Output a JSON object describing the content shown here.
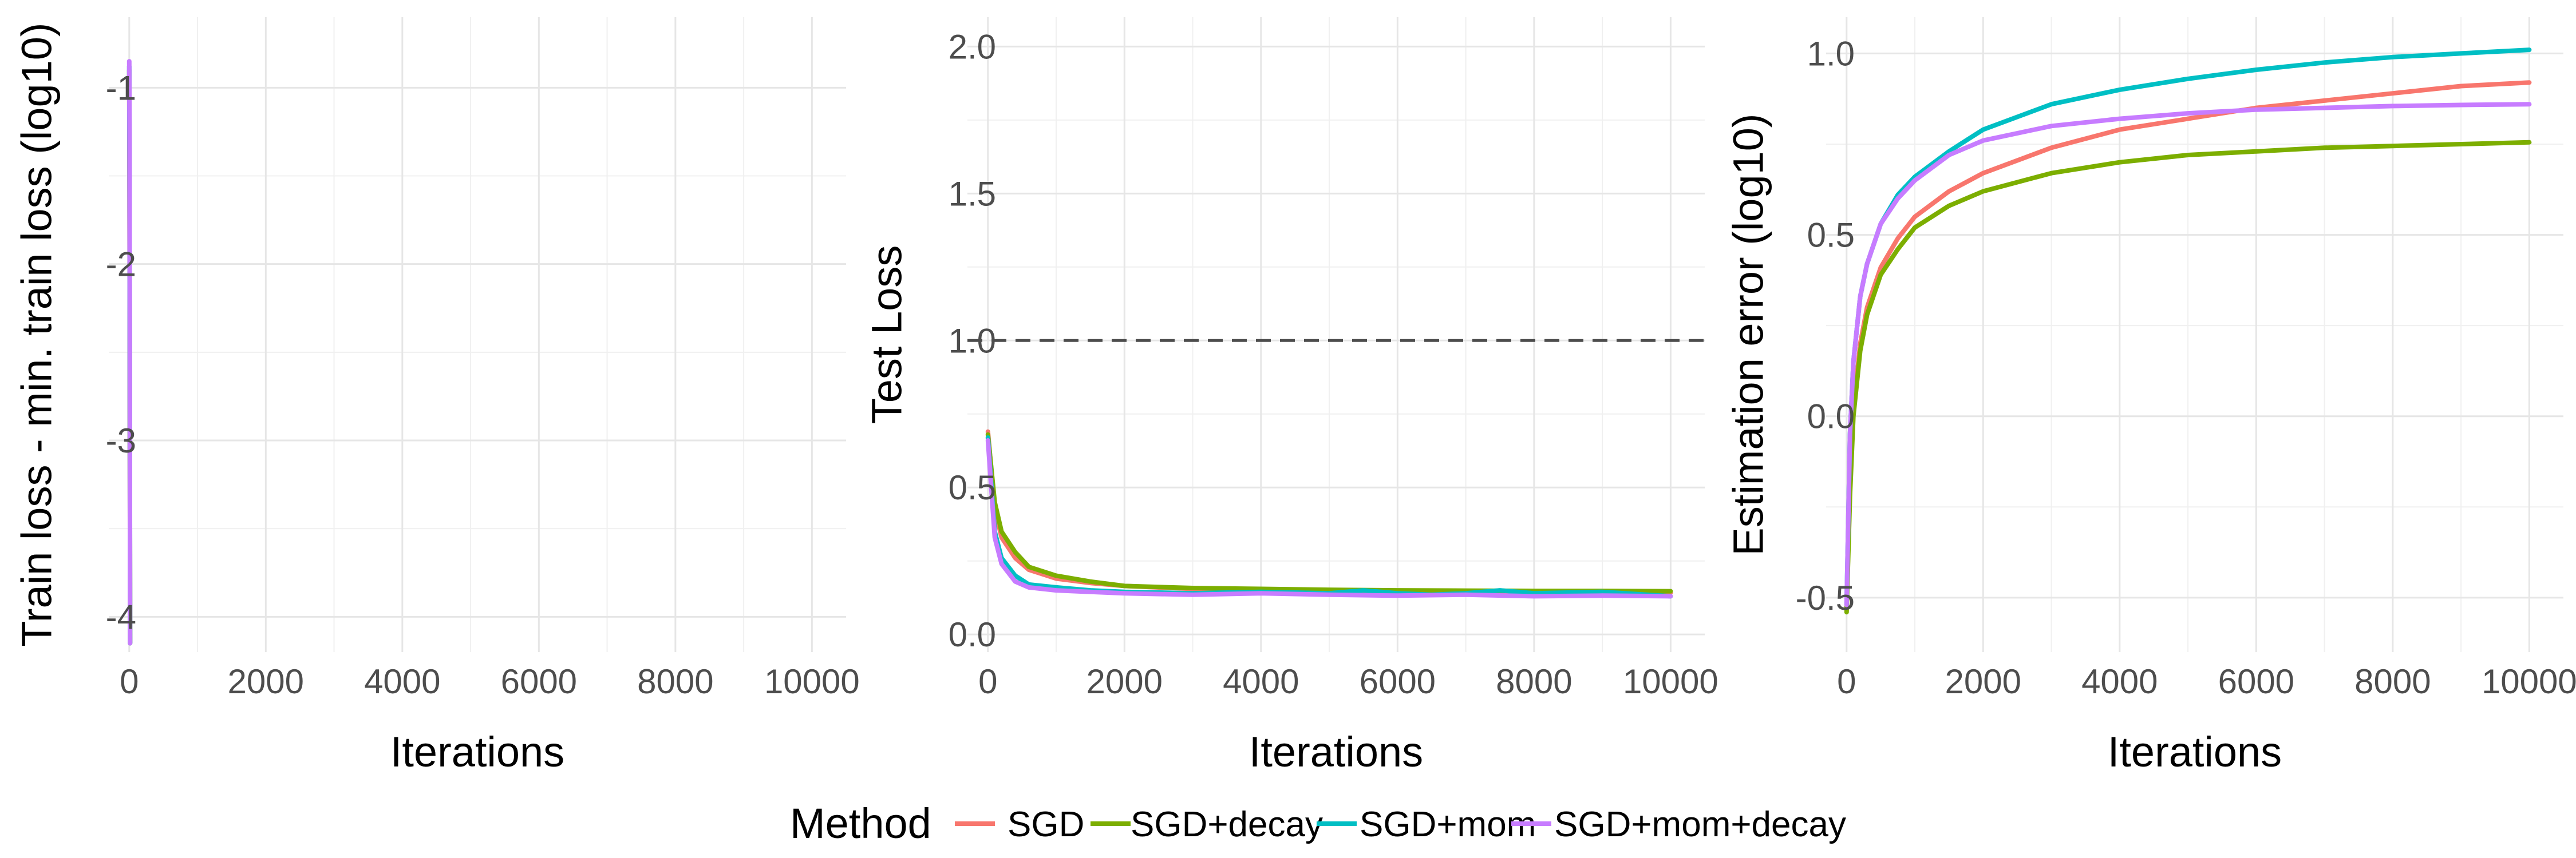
{
  "chart_data": [
    {
      "type": "line",
      "xlabel": "Iterations",
      "ylabel": "Train loss - min. train loss (log10)",
      "xlim": [
        -300,
        10500
      ],
      "ylim": [
        -4.2,
        -0.6
      ],
      "x_ticks": [
        0,
        2000,
        4000,
        6000,
        8000,
        10000
      ],
      "x_tick_labels": [
        "0",
        "2000",
        "4000",
        "6000",
        "8000",
        "10000"
      ],
      "y_ticks": [
        -1,
        -2,
        -3,
        -4
      ],
      "y_tick_labels": [
        "-1",
        "-2",
        "-3",
        "-4"
      ],
      "grid": true,
      "series": [
        {
          "name": "SGD",
          "color": "#F8766D",
          "points": [
            [
              0,
              -0.95
            ],
            [
              4,
              -1.6
            ],
            [
              8,
              -2.6
            ],
            [
              12,
              -4.15
            ]
          ]
        },
        {
          "name": "SGD+decay",
          "color": "#7CAE00",
          "points": [
            [
              0,
              -0.9
            ],
            [
              4,
              -1.5
            ],
            [
              8,
              -2.5
            ],
            [
              12,
              -4.15
            ]
          ]
        },
        {
          "name": "SGD+mom",
          "color": "#00BFC4",
          "points": [
            [
              0,
              -0.88
            ],
            [
              4,
              -1.4
            ],
            [
              8,
              -2.4
            ],
            [
              12,
              -4.15
            ]
          ]
        },
        {
          "name": "SGD+mom+decay",
          "color": "#C77CFF",
          "points": [
            [
              0,
              -0.85
            ],
            [
              4,
              -1.3
            ],
            [
              8,
              -2.3
            ],
            [
              12,
              -4.15
            ]
          ]
        }
      ]
    },
    {
      "type": "line",
      "xlabel": "Iterations",
      "ylabel": "Test Loss",
      "xlim": [
        -300,
        10500
      ],
      "ylim": [
        -0.06,
        2.1
      ],
      "x_ticks": [
        0,
        2000,
        4000,
        6000,
        8000,
        10000
      ],
      "x_tick_labels": [
        "0",
        "2000",
        "4000",
        "6000",
        "8000",
        "10000"
      ],
      "y_ticks": [
        0.0,
        0.5,
        1.0,
        1.5,
        2.0
      ],
      "y_tick_labels": [
        "0.0",
        "0.5",
        "1.0",
        "1.5",
        "2.0"
      ],
      "grid": true,
      "hline": {
        "y": 1.0,
        "style": "dashed",
        "color": "#4d4d4d"
      },
      "series": [
        {
          "name": "SGD",
          "color": "#F8766D",
          "points": [
            [
              0,
              0.69
            ],
            [
              100,
              0.43
            ],
            [
              200,
              0.33
            ],
            [
              400,
              0.26
            ],
            [
              600,
              0.22
            ],
            [
              1000,
              0.19
            ],
            [
              1500,
              0.175
            ],
            [
              2000,
              0.165
            ],
            [
              3000,
              0.155
            ],
            [
              4000,
              0.15
            ],
            [
              5000,
              0.148
            ],
            [
              6000,
              0.146
            ],
            [
              7000,
              0.145
            ],
            [
              8000,
              0.144
            ],
            [
              9000,
              0.143
            ],
            [
              10000,
              0.142
            ]
          ]
        },
        {
          "name": "SGD+decay",
          "color": "#7CAE00",
          "points": [
            [
              0,
              0.68
            ],
            [
              100,
              0.45
            ],
            [
              200,
              0.35
            ],
            [
              400,
              0.28
            ],
            [
              600,
              0.23
            ],
            [
              1000,
              0.2
            ],
            [
              1500,
              0.18
            ],
            [
              2000,
              0.165
            ],
            [
              3000,
              0.158
            ],
            [
              4000,
              0.155
            ],
            [
              5000,
              0.152
            ],
            [
              6000,
              0.15
            ],
            [
              7000,
              0.149
            ],
            [
              8000,
              0.148
            ],
            [
              9000,
              0.148
            ],
            [
              10000,
              0.147
            ]
          ]
        },
        {
          "name": "SGD+mom",
          "color": "#00BFC4",
          "points": [
            [
              0,
              0.67
            ],
            [
              100,
              0.35
            ],
            [
              200,
              0.26
            ],
            [
              400,
              0.2
            ],
            [
              600,
              0.17
            ],
            [
              1000,
              0.16
            ],
            [
              1500,
              0.15
            ],
            [
              2000,
              0.145
            ],
            [
              3000,
              0.14
            ],
            [
              4000,
              0.145
            ],
            [
              5000,
              0.14
            ],
            [
              5500,
              0.15
            ],
            [
              6000,
              0.14
            ],
            [
              6500,
              0.135
            ],
            [
              7000,
              0.14
            ],
            [
              7500,
              0.15
            ],
            [
              8000,
              0.14
            ],
            [
              9000,
              0.145
            ],
            [
              10000,
              0.13
            ]
          ]
        },
        {
          "name": "SGD+mom+decay",
          "color": "#C77CFF",
          "points": [
            [
              0,
              0.66
            ],
            [
              100,
              0.33
            ],
            [
              200,
              0.24
            ],
            [
              400,
              0.18
            ],
            [
              600,
              0.16
            ],
            [
              1000,
              0.15
            ],
            [
              1500,
              0.145
            ],
            [
              2000,
              0.14
            ],
            [
              3000,
              0.135
            ],
            [
              4000,
              0.14
            ],
            [
              5000,
              0.135
            ],
            [
              6000,
              0.132
            ],
            [
              7000,
              0.135
            ],
            [
              8000,
              0.13
            ],
            [
              9000,
              0.132
            ],
            [
              10000,
              0.13
            ]
          ]
        }
      ]
    },
    {
      "type": "line",
      "xlabel": "Iterations",
      "ylabel": "Estimation error (log10)",
      "xlim": [
        -300,
        10500
      ],
      "ylim": [
        -0.65,
        1.1
      ],
      "x_ticks": [
        0,
        2000,
        4000,
        6000,
        8000,
        10000
      ],
      "x_tick_labels": [
        "0",
        "2000",
        "4000",
        "6000",
        "8000",
        "10000"
      ],
      "y_ticks": [
        -0.5,
        0.0,
        0.5,
        1.0
      ],
      "y_tick_labels": [
        "-0.5",
        "0.0",
        "0.5",
        "1.0"
      ],
      "grid": true,
      "series": [
        {
          "name": "SGD",
          "color": "#F8766D",
          "points": [
            [
              0,
              -0.53
            ],
            [
              50,
              -0.2
            ],
            [
              100,
              0.02
            ],
            [
              200,
              0.2
            ],
            [
              300,
              0.3
            ],
            [
              500,
              0.41
            ],
            [
              750,
              0.49
            ],
            [
              1000,
              0.55
            ],
            [
              1500,
              0.62
            ],
            [
              2000,
              0.67
            ],
            [
              3000,
              0.74
            ],
            [
              4000,
              0.79
            ],
            [
              5000,
              0.82
            ],
            [
              6000,
              0.85
            ],
            [
              7000,
              0.87
            ],
            [
              8000,
              0.89
            ],
            [
              9000,
              0.91
            ],
            [
              10000,
              0.92
            ]
          ]
        },
        {
          "name": "SGD+decay",
          "color": "#7CAE00",
          "points": [
            [
              0,
              -0.54
            ],
            [
              50,
              -0.22
            ],
            [
              100,
              0.0
            ],
            [
              200,
              0.18
            ],
            [
              300,
              0.28
            ],
            [
              500,
              0.39
            ],
            [
              750,
              0.46
            ],
            [
              1000,
              0.52
            ],
            [
              1500,
              0.58
            ],
            [
              2000,
              0.62
            ],
            [
              3000,
              0.67
            ],
            [
              4000,
              0.7
            ],
            [
              5000,
              0.72
            ],
            [
              6000,
              0.73
            ],
            [
              7000,
              0.74
            ],
            [
              8000,
              0.745
            ],
            [
              9000,
              0.75
            ],
            [
              10000,
              0.755
            ]
          ]
        },
        {
          "name": "SGD+mom",
          "color": "#00BFC4",
          "points": [
            [
              0,
              -0.52
            ],
            [
              50,
              -0.05
            ],
            [
              100,
              0.15
            ],
            [
              200,
              0.33
            ],
            [
              300,
              0.42
            ],
            [
              500,
              0.53
            ],
            [
              750,
              0.61
            ],
            [
              1000,
              0.66
            ],
            [
              1500,
              0.73
            ],
            [
              2000,
              0.79
            ],
            [
              3000,
              0.86
            ],
            [
              4000,
              0.9
            ],
            [
              5000,
              0.93
            ],
            [
              6000,
              0.955
            ],
            [
              7000,
              0.975
            ],
            [
              8000,
              0.99
            ],
            [
              9000,
              1.0
            ],
            [
              10000,
              1.01
            ]
          ]
        },
        {
          "name": "SGD+mom+decay",
          "color": "#C77CFF",
          "points": [
            [
              0,
              -0.52
            ],
            [
              50,
              -0.05
            ],
            [
              100,
              0.15
            ],
            [
              200,
              0.33
            ],
            [
              300,
              0.42
            ],
            [
              500,
              0.53
            ],
            [
              750,
              0.6
            ],
            [
              1000,
              0.65
            ],
            [
              1500,
              0.72
            ],
            [
              2000,
              0.76
            ],
            [
              3000,
              0.8
            ],
            [
              4000,
              0.82
            ],
            [
              5000,
              0.835
            ],
            [
              6000,
              0.845
            ],
            [
              7000,
              0.85
            ],
            [
              8000,
              0.855
            ],
            [
              9000,
              0.858
            ],
            [
              10000,
              0.86
            ]
          ]
        }
      ]
    }
  ],
  "legend": {
    "title": "Method",
    "position": "bottom",
    "items": [
      {
        "label": "SGD",
        "color": "#F8766D"
      },
      {
        "label": "SGD+decay",
        "color": "#7CAE00"
      },
      {
        "label": "SGD+mom",
        "color": "#00BFC4"
      },
      {
        "label": "SGD+mom+decay",
        "color": "#C77CFF"
      }
    ]
  }
}
